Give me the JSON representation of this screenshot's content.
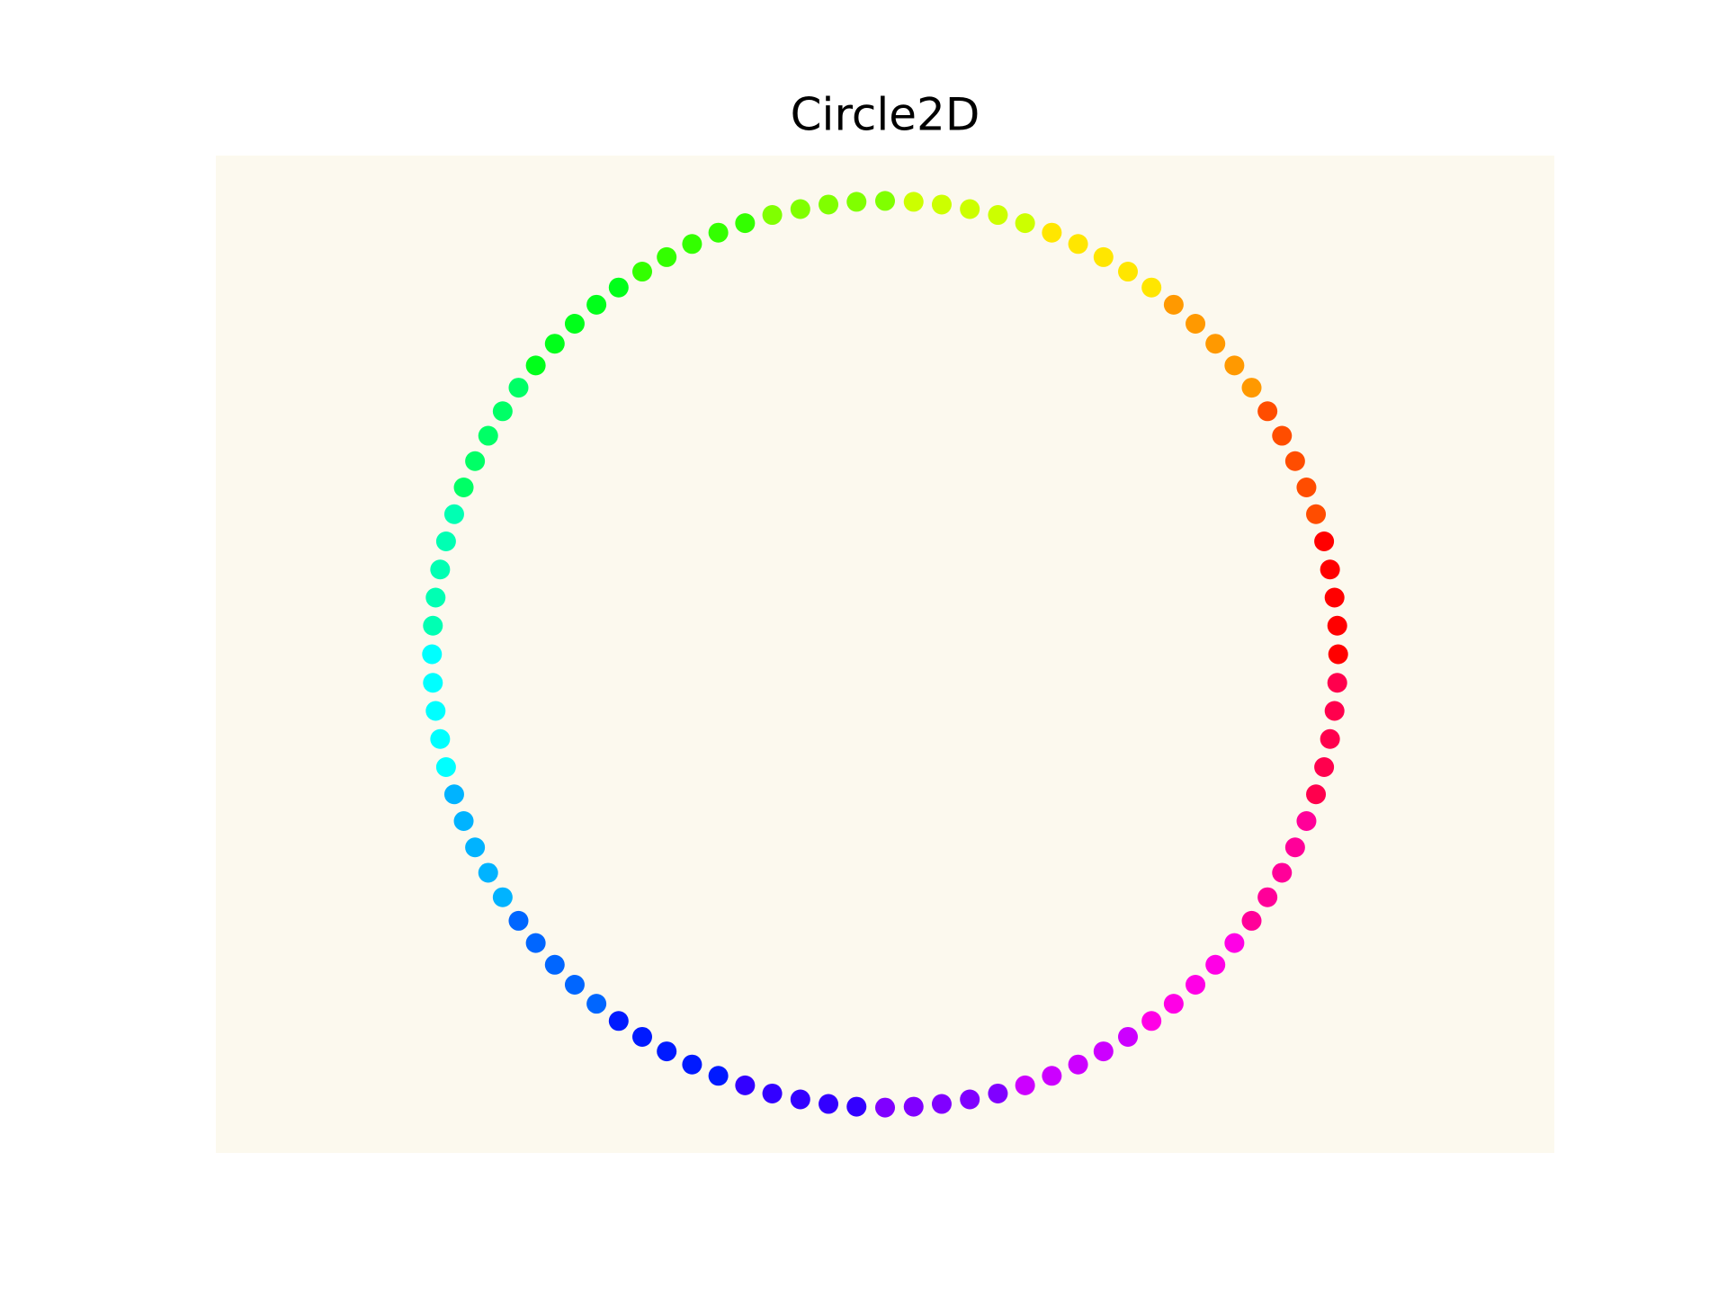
{
  "chart_data": {
    "type": "scatter",
    "title": "Circle2D",
    "facecolor": "#fcf9ee",
    "xlim": [
      -1.477,
      1.477
    ],
    "ylim": [
      -1.1,
      1.1
    ],
    "x": [
      1,
      0.998,
      0.992,
      0.982,
      0.969,
      0.951,
      0.93,
      0.905,
      0.876,
      0.844,
      0.809,
      0.771,
      0.729,
      0.685,
      0.637,
      0.588,
      0.536,
      0.482,
      0.426,
      0.368,
      0.309,
      0.249,
      0.187,
      0.125,
      0.063,
      0,
      -0.063,
      -0.125,
      -0.187,
      -0.249,
      -0.309,
      -0.368,
      -0.426,
      -0.482,
      -0.536,
      -0.588,
      -0.637,
      -0.685,
      -0.729,
      -0.771,
      -0.809,
      -0.844,
      -0.876,
      -0.905,
      -0.93,
      -0.951,
      -0.969,
      -0.982,
      -0.992,
      -0.998,
      -1,
      -0.998,
      -0.992,
      -0.982,
      -0.969,
      -0.951,
      -0.93,
      -0.905,
      -0.876,
      -0.844,
      -0.809,
      -0.771,
      -0.729,
      -0.685,
      -0.637,
      -0.588,
      -0.536,
      -0.482,
      -0.426,
      -0.368,
      -0.309,
      -0.249,
      -0.187,
      -0.125,
      -0.063,
      0,
      0.063,
      0.125,
      0.187,
      0.249,
      0.309,
      0.368,
      0.426,
      0.482,
      0.536,
      0.588,
      0.637,
      0.685,
      0.729,
      0.771,
      0.809,
      0.844,
      0.876,
      0.905,
      0.93,
      0.951,
      0.969,
      0.982,
      0.992,
      0.998
    ],
    "values": [
      0,
      0.063,
      0.125,
      0.187,
      0.249,
      0.309,
      0.368,
      0.426,
      0.482,
      0.536,
      0.588,
      0.637,
      0.685,
      0.729,
      0.771,
      0.809,
      0.844,
      0.876,
      0.905,
      0.93,
      0.951,
      0.969,
      0.982,
      0.992,
      0.998,
      1,
      0.998,
      0.992,
      0.982,
      0.969,
      0.951,
      0.93,
      0.905,
      0.876,
      0.844,
      0.809,
      0.771,
      0.729,
      0.685,
      0.637,
      0.588,
      0.536,
      0.482,
      0.426,
      0.368,
      0.309,
      0.249,
      0.187,
      0.125,
      0.063,
      0,
      -0.063,
      -0.125,
      -0.187,
      -0.249,
      -0.309,
      -0.368,
      -0.426,
      -0.482,
      -0.536,
      -0.588,
      -0.637,
      -0.685,
      -0.729,
      -0.771,
      -0.809,
      -0.844,
      -0.876,
      -0.905,
      -0.93,
      -0.951,
      -0.969,
      -0.982,
      -0.992,
      -0.998,
      -1,
      -0.998,
      -0.992,
      -0.982,
      -0.969,
      -0.951,
      -0.93,
      -0.905,
      -0.876,
      -0.844,
      -0.809,
      -0.771,
      -0.729,
      -0.685,
      -0.637,
      -0.588,
      -0.536,
      -0.482,
      -0.426,
      -0.368,
      -0.309,
      -0.249,
      -0.187,
      -0.125,
      -0.063
    ],
    "colors": [
      "#ff0000",
      "#ff0000",
      "#ff0000",
      "#ff0000",
      "#ff0000",
      "#ff4d00",
      "#ff4d00",
      "#ff4d00",
      "#ff4d00",
      "#ff4d00",
      "#ff9900",
      "#ff9900",
      "#ff9900",
      "#ff9900",
      "#ff9900",
      "#ffe600",
      "#ffe600",
      "#ffe600",
      "#ffe600",
      "#ffe600",
      "#ccff00",
      "#ccff00",
      "#ccff00",
      "#ccff00",
      "#ccff00",
      "#80ff00",
      "#80ff00",
      "#80ff00",
      "#80ff00",
      "#80ff00",
      "#33ff00",
      "#33ff00",
      "#33ff00",
      "#33ff00",
      "#33ff00",
      "#00ff1a",
      "#00ff1a",
      "#00ff1a",
      "#00ff1a",
      "#00ff1a",
      "#00ff66",
      "#00ff66",
      "#00ff66",
      "#00ff66",
      "#00ff66",
      "#00ffb3",
      "#00ffb3",
      "#00ffb3",
      "#00ffb3",
      "#00ffb3",
      "#00ffff",
      "#00ffff",
      "#00ffff",
      "#00ffff",
      "#00ffff",
      "#00b3ff",
      "#00b3ff",
      "#00b3ff",
      "#00b3ff",
      "#00b3ff",
      "#0066ff",
      "#0066ff",
      "#0066ff",
      "#0066ff",
      "#0066ff",
      "#001aff",
      "#001aff",
      "#001aff",
      "#001aff",
      "#001aff",
      "#3300ff",
      "#3300ff",
      "#3300ff",
      "#3300ff",
      "#3300ff",
      "#8000ff",
      "#8000ff",
      "#8000ff",
      "#8000ff",
      "#8000ff",
      "#cc00ff",
      "#cc00ff",
      "#cc00ff",
      "#cc00ff",
      "#cc00ff",
      "#ff00e6",
      "#ff00e6",
      "#ff00e6",
      "#ff00e6",
      "#ff00e6",
      "#ff0099",
      "#ff0099",
      "#ff0099",
      "#ff0099",
      "#ff0099",
      "#ff004d",
      "#ff004d",
      "#ff004d",
      "#ff004d",
      "#ff004d"
    ]
  }
}
